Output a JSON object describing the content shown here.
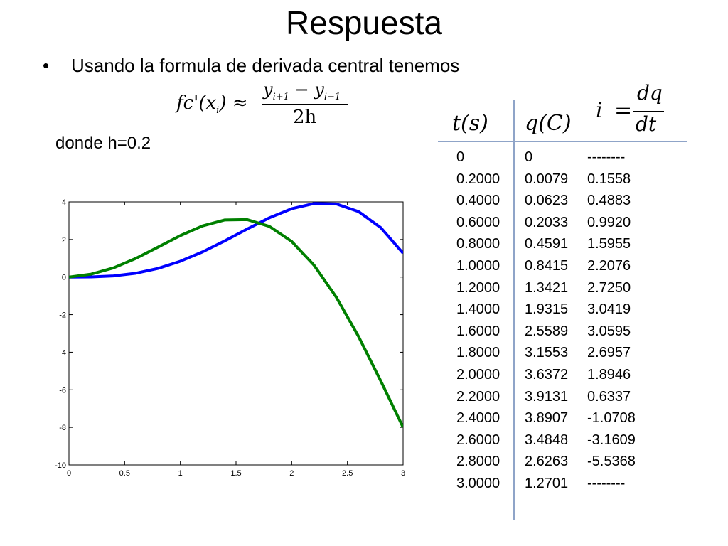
{
  "slide": {
    "title": "Respuesta",
    "bullet": "Usando la formula de derivada central tenemos",
    "donde": "donde h=0.2",
    "formula": {
      "lhs_text": "fc'(x",
      "lhs_sub": "i",
      "lhs_close": ") ≈",
      "num_y1": "y",
      "num_sub1": "i+1",
      "num_minus": " − y",
      "num_sub2": "i−1",
      "den": "2h"
    },
    "current_formula": {
      "i": "i",
      "eq": "=",
      "num": "dq",
      "den": "dt"
    },
    "table": {
      "headers": [
        "t(s)",
        "q(C)"
      ],
      "rows": [
        [
          "0",
          "0",
          "--------"
        ],
        [
          "0.2000",
          "0.0079",
          "0.1558"
        ],
        [
          "0.4000",
          "0.0623",
          "0.4883"
        ],
        [
          "0.6000",
          "0.2033",
          "0.9920"
        ],
        [
          "0.8000",
          "0.4591",
          "1.5955"
        ],
        [
          "1.0000",
          "0.8415",
          "2.2076"
        ],
        [
          "1.2000",
          "1.3421",
          "2.7250"
        ],
        [
          "1.4000",
          "1.9315",
          "3.0419"
        ],
        [
          "1.6000",
          "2.5589",
          "3.0595"
        ],
        [
          "1.8000",
          "3.1553",
          "2.6957"
        ],
        [
          "2.0000",
          "3.6372",
          "1.8946"
        ],
        [
          "2.2000",
          "3.9131",
          "0.6337"
        ],
        [
          "2.4000",
          "3.8907",
          "-1.0708"
        ],
        [
          "2.6000",
          "3.4848",
          "-3.1609"
        ],
        [
          "2.8000",
          "2.6263",
          "-5.5368"
        ],
        [
          "3.0000",
          "1.2701",
          "--------"
        ]
      ]
    }
  },
  "chart_data": {
    "type": "line",
    "title": "",
    "xlabel": "",
    "ylabel": "",
    "xlim": [
      0,
      3
    ],
    "ylim": [
      -10,
      4
    ],
    "xticks": [
      "0",
      "0.5",
      "1",
      "1.5",
      "2",
      "2.5",
      "3"
    ],
    "yticks": [
      "4",
      "2",
      "0",
      "-2",
      "-4",
      "-6",
      "-8",
      "-10"
    ],
    "grid": false,
    "x": [
      0,
      0.2,
      0.4,
      0.6,
      0.8,
      1.0,
      1.2,
      1.4,
      1.6,
      1.8,
      2.0,
      2.2,
      2.4,
      2.6,
      2.8,
      3.0
    ],
    "series": [
      {
        "color": "#0000ff",
        "values": [
          0,
          0.0079,
          0.0623,
          0.2033,
          0.4591,
          0.8415,
          1.3421,
          1.9315,
          2.5589,
          3.1553,
          3.6372,
          3.9131,
          3.8907,
          3.4848,
          2.6263,
          1.2701
        ]
      },
      {
        "color": "#008000",
        "values": [
          0,
          0.1558,
          0.4883,
          0.992,
          1.5955,
          2.2076,
          2.725,
          3.0419,
          3.0595,
          2.6957,
          1.8946,
          0.6337,
          -1.0708,
          -3.1609,
          -5.5368,
          -8.0
        ]
      }
    ]
  }
}
